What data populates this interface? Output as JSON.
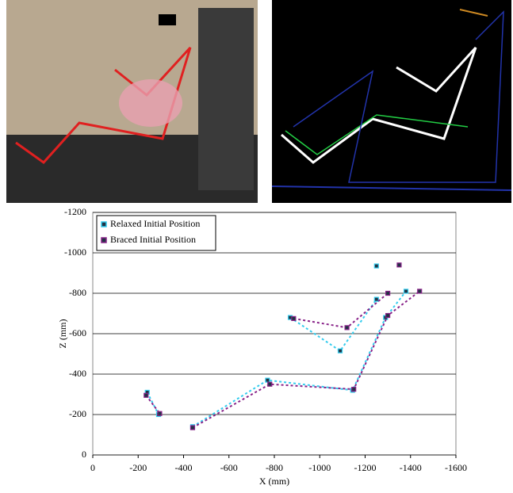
{
  "chart_data": {
    "type": "line",
    "xlabel": "X (mm)",
    "ylabel": "Z (mm)",
    "xlim": [
      0,
      -1600
    ],
    "xticks": [
      0,
      -200,
      -400,
      -600,
      -800,
      -1000,
      -1200,
      -1400,
      -1600
    ],
    "ylim": [
      0,
      -1200
    ],
    "yticks": [
      0,
      -200,
      -400,
      -600,
      -800,
      -1000,
      -1200
    ],
    "grid": true,
    "legend": "top-left",
    "series": [
      {
        "name": "Relaxed Initial Position",
        "color": "#33ccee",
        "x": [
          -240,
          -290,
          null,
          -440,
          -770,
          -1145,
          -1290,
          -1380,
          null,
          -870,
          -1090,
          -1250,
          null,
          -1250
        ],
        "values": [
          -310,
          -200,
          null,
          -140,
          -370,
          -320,
          -680,
          -810,
          null,
          -680,
          -515,
          -770,
          null,
          -935
        ]
      },
      {
        "name": "Braced Initial Position",
        "color": "#882288",
        "x": [
          -235,
          -295,
          null,
          -440,
          -780,
          -1150,
          -1300,
          -1440,
          null,
          -885,
          -1120,
          -1300,
          null,
          -1350
        ],
        "values": [
          -295,
          -205,
          null,
          -135,
          -350,
          -325,
          -690,
          -810,
          null,
          -675,
          -630,
          -800,
          null,
          -940
        ]
      }
    ]
  }
}
